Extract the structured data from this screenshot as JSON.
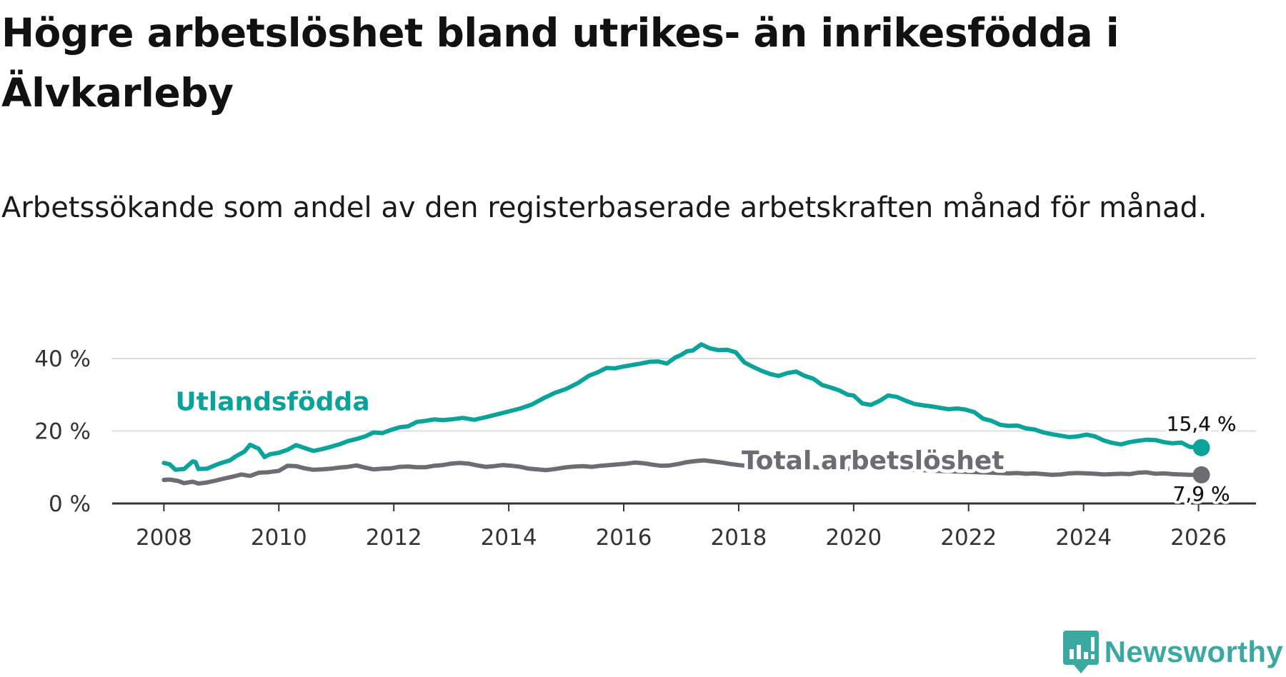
{
  "title": "Högre arbetslöshet bland utrikes- än inrikesfödda i Älvkarleby",
  "subtitle": "Arbetssökande som andel av den registerbaserade arbetskraften månad för månad.",
  "brand": {
    "name": "Newsworthy",
    "icon": "newsworthy-logo-icon",
    "color": "#3aa99f"
  },
  "chart_data": {
    "type": "line",
    "title": "Högre arbetslöshet bland utrikes- än inrikesfödda i Älvkarleby",
    "xlabel": "",
    "ylabel": "",
    "xlim": [
      2007.1,
      2027.0
    ],
    "ylim": [
      0,
      40
    ],
    "grid": true,
    "yticks": [
      {
        "value": 0,
        "label": "0 %"
      },
      {
        "value": 20,
        "label": "20 %"
      },
      {
        "value": 40,
        "label": "40 %"
      }
    ],
    "xticks": [
      {
        "value": 2008,
        "label": "2008"
      },
      {
        "value": 2010,
        "label": "2010"
      },
      {
        "value": 2012,
        "label": "2012"
      },
      {
        "value": 2014,
        "label": "2014"
      },
      {
        "value": 2016,
        "label": "2016"
      },
      {
        "value": 2018,
        "label": "2018"
      },
      {
        "value": 2020,
        "label": "2020"
      },
      {
        "value": 2022,
        "label": "2022"
      },
      {
        "value": 2024,
        "label": "2024"
      },
      {
        "value": 2026,
        "label": "2026"
      }
    ],
    "series": [
      {
        "name": "Utlandsfödda",
        "label": "Utlandsfödda",
        "color": "#0aa39a",
        "end_label": "15,4 %",
        "label_at": [
          2008.2,
          25.7
        ],
        "x": [
          2008.0,
          2008.1,
          2008.2,
          2008.35,
          2008.5,
          2008.55,
          2008.6,
          2008.75,
          2008.9,
          2009.0,
          2009.15,
          2009.25,
          2009.4,
          2009.5,
          2009.65,
          2009.75,
          2009.85,
          2010.0,
          2010.15,
          2010.3,
          2010.45,
          2010.6,
          2010.75,
          2010.9,
          2011.05,
          2011.2,
          2011.35,
          2011.5,
          2011.65,
          2011.8,
          2011.95,
          2012.1,
          2012.25,
          2012.4,
          2012.55,
          2012.7,
          2012.85,
          2013.0,
          2013.2,
          2013.4,
          2013.6,
          2013.8,
          2014.0,
          2014.2,
          2014.4,
          2014.6,
          2014.8,
          2015.0,
          2015.2,
          2015.4,
          2015.55,
          2015.7,
          2015.85,
          2016.0,
          2016.15,
          2016.3,
          2016.45,
          2016.6,
          2016.75,
          2016.9,
          2017.0,
          2017.1,
          2017.2,
          2017.35,
          2017.5,
          2017.65,
          2017.8,
          2017.95,
          2018.1,
          2018.25,
          2018.4,
          2018.55,
          2018.7,
          2018.85,
          2019.0,
          2019.15,
          2019.3,
          2019.45,
          2019.6,
          2019.75,
          2019.9,
          2020.0,
          2020.15,
          2020.3,
          2020.45,
          2020.6,
          2020.75,
          2020.9,
          2021.05,
          2021.2,
          2021.35,
          2021.5,
          2021.65,
          2021.8,
          2021.95,
          2022.1,
          2022.25,
          2022.4,
          2022.55,
          2022.7,
          2022.85,
          2023.0,
          2023.15,
          2023.3,
          2023.45,
          2023.6,
          2023.75,
          2023.9,
          2024.05,
          2024.2,
          2024.35,
          2024.5,
          2024.65,
          2024.8,
          2024.95,
          2025.1,
          2025.25,
          2025.4,
          2025.55,
          2025.7,
          2025.85,
          2026.0,
          2026.05
        ],
        "values": [
          11.2,
          10.8,
          9.3,
          9.5,
          11.6,
          11.4,
          9.5,
          9.6,
          10.6,
          11.2,
          11.9,
          13.0,
          14.3,
          16.2,
          15.1,
          12.8,
          13.6,
          14.0,
          14.8,
          16.1,
          15.3,
          14.5,
          15.0,
          15.6,
          16.3,
          17.2,
          17.8,
          18.5,
          19.6,
          19.4,
          20.3,
          21.0,
          21.3,
          22.5,
          22.8,
          23.2,
          23.0,
          23.2,
          23.6,
          23.1,
          23.8,
          24.6,
          25.4,
          26.2,
          27.3,
          29.0,
          30.5,
          31.6,
          33.2,
          35.3,
          36.2,
          37.4,
          37.3,
          37.8,
          38.2,
          38.6,
          39.1,
          39.2,
          38.6,
          40.3,
          41.0,
          42.0,
          42.2,
          43.9,
          42.8,
          42.3,
          42.4,
          41.7,
          38.9,
          37.7,
          36.6,
          35.7,
          35.2,
          36.0,
          36.4,
          35.2,
          34.4,
          32.7,
          32.0,
          31.2,
          30.0,
          29.8,
          27.6,
          27.2,
          28.3,
          29.8,
          29.4,
          28.4,
          27.5,
          27.1,
          26.8,
          26.4,
          26.0,
          26.2,
          25.9,
          25.2,
          23.4,
          22.8,
          21.7,
          21.4,
          21.5,
          20.7,
          20.4,
          19.6,
          19.1,
          18.7,
          18.3,
          18.5,
          19.0,
          18.5,
          17.4,
          16.7,
          16.3,
          16.9,
          17.3,
          17.6,
          17.5,
          16.9,
          16.6,
          16.8,
          15.6,
          15.4,
          15.4
        ]
      },
      {
        "name": "Total arbetslöshet",
        "label": "Total arbetslöshet",
        "color": "#6d6c72",
        "end_label": "7,9 %",
        "label_at": [
          2018.05,
          9.5
        ],
        "x": [
          2008.0,
          2008.1,
          2008.25,
          2008.35,
          2008.5,
          2008.6,
          2008.75,
          2008.9,
          2009.05,
          2009.2,
          2009.35,
          2009.5,
          2009.65,
          2009.8,
          2010.0,
          2010.15,
          2010.3,
          2010.45,
          2010.6,
          2010.75,
          2010.9,
          2011.05,
          2011.2,
          2011.35,
          2011.5,
          2011.65,
          2011.8,
          2011.95,
          2012.1,
          2012.25,
          2012.4,
          2012.55,
          2012.7,
          2012.85,
          2013.0,
          2013.15,
          2013.3,
          2013.45,
          2013.6,
          2013.75,
          2013.9,
          2014.05,
          2014.2,
          2014.35,
          2014.5,
          2014.65,
          2014.8,
          2015.0,
          2015.15,
          2015.3,
          2015.45,
          2015.6,
          2015.75,
          2015.9,
          2016.05,
          2016.2,
          2016.35,
          2016.5,
          2016.65,
          2016.8,
          2016.95,
          2017.1,
          2017.25,
          2017.4,
          2017.55,
          2017.7,
          2017.85,
          2018.0,
          2018.2,
          2018.4,
          2018.6,
          2018.8,
          2019.0,
          2019.2,
          2019.4,
          2019.6,
          2019.8,
          2020.0,
          2020.2,
          2020.4,
          2020.6,
          2020.8,
          2021.0,
          2021.2,
          2021.4,
          2021.6,
          2021.8,
          2022.0,
          2022.2,
          2022.4,
          2022.55,
          2022.7,
          2022.85,
          2023.0,
          2023.15,
          2023.3,
          2023.45,
          2023.6,
          2023.75,
          2023.9,
          2024.05,
          2024.2,
          2024.35,
          2024.5,
          2024.65,
          2024.8,
          2024.95,
          2025.1,
          2025.25,
          2025.4,
          2025.55,
          2025.7,
          2025.85,
          2026.0,
          2026.05
        ],
        "values": [
          6.5,
          6.6,
          6.2,
          5.6,
          6.0,
          5.5,
          5.8,
          6.3,
          6.9,
          7.4,
          8.0,
          7.6,
          8.5,
          8.6,
          9.0,
          10.4,
          10.3,
          9.7,
          9.3,
          9.4,
          9.6,
          9.9,
          10.1,
          10.5,
          9.9,
          9.4,
          9.6,
          9.7,
          10.1,
          10.2,
          10.0,
          10.0,
          10.4,
          10.6,
          11.0,
          11.2,
          11.0,
          10.5,
          10.1,
          10.3,
          10.6,
          10.4,
          10.1,
          9.6,
          9.4,
          9.2,
          9.5,
          10.0,
          10.2,
          10.3,
          10.1,
          10.4,
          10.6,
          10.8,
          11.0,
          11.3,
          11.1,
          10.7,
          10.4,
          10.5,
          10.9,
          11.4,
          11.7,
          11.9,
          11.6,
          11.3,
          10.9,
          10.6,
          10.3,
          10.2,
          10.1,
          10.1,
          10.0,
          10.1,
          9.9,
          9.6,
          9.4,
          9.7,
          10.0,
          9.9,
          9.7,
          9.5,
          9.3,
          9.2,
          9.0,
          8.9,
          8.8,
          8.7,
          8.6,
          8.5,
          8.4,
          8.3,
          8.4,
          8.2,
          8.3,
          8.1,
          7.9,
          8.0,
          8.3,
          8.4,
          8.3,
          8.2,
          8.0,
          8.1,
          8.2,
          8.1,
          8.5,
          8.6,
          8.2,
          8.3,
          8.1,
          8.0,
          7.9,
          7.9,
          7.9
        ]
      }
    ]
  }
}
